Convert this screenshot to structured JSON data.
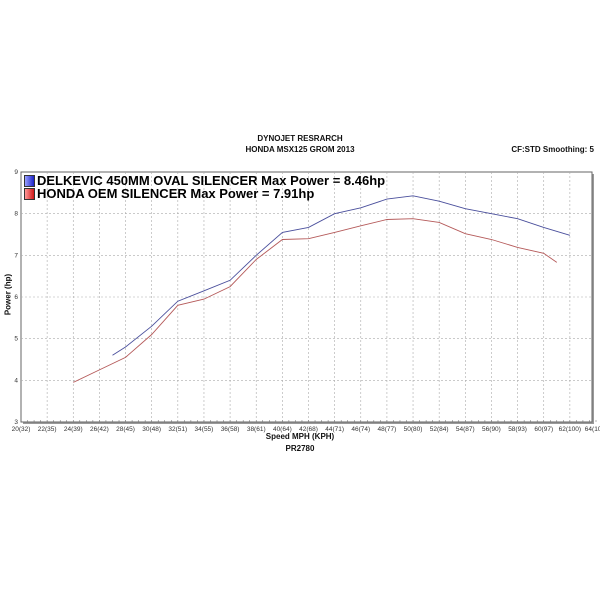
{
  "header": {
    "title": "DYNOJET RESRARCH",
    "subtitle": "HONDA MSX125 GROM 2013",
    "settings": "CF:STD Smoothing: 5"
  },
  "footer": {
    "run_id": "PR2780"
  },
  "chart_data": {
    "type": "line",
    "title": "DYNOJET RESRARCH",
    "subtitle": "HONDA MSX125 GROM 2013",
    "xlabel": "Speed MPH (KPH)",
    "ylabel": "Power (hp)",
    "xlim": [
      20,
      64
    ],
    "ylim": [
      3,
      9
    ],
    "grid": true,
    "legend": "top-left",
    "x_ticks": [
      "20(32)",
      "22(35)",
      "24(39)",
      "26(42)",
      "28(45)",
      "30(48)",
      "32(51)",
      "34(55)",
      "36(58)",
      "38(61)",
      "40(64)",
      "42(68)",
      "44(71)",
      "46(74)",
      "48(77)",
      "50(80)",
      "52(84)",
      "54(87)",
      "56(90)",
      "58(93)",
      "60(97)",
      "62(100)",
      "64(103)"
    ],
    "y_ticks": [
      "3",
      "4",
      "5",
      "6",
      "7",
      "8",
      "9"
    ],
    "series": [
      {
        "name": "DELKEVIC 450MM OVAL SILENCER Max Power = 8.46hp",
        "color": "#4a4f9c",
        "x": [
          27,
          28,
          30,
          32,
          34,
          36,
          38,
          40,
          42,
          44,
          46,
          48,
          50,
          52,
          54,
          56,
          58,
          60,
          62
        ],
        "y": [
          4.6,
          4.8,
          5.3,
          5.9,
          6.15,
          6.4,
          7.0,
          7.55,
          7.67,
          8.0,
          8.14,
          8.35,
          8.43,
          8.3,
          8.12,
          8.0,
          7.88,
          7.67,
          7.48
        ]
      },
      {
        "name": "HONDA OEM SILENCER Max Power = 7.91hp",
        "color": "#b55a5a",
        "x": [
          24,
          26,
          28,
          30,
          32,
          34,
          36,
          38,
          40,
          42,
          44,
          46,
          48,
          50,
          52,
          54,
          56,
          58,
          60,
          61
        ],
        "y": [
          3.95,
          4.25,
          4.55,
          5.1,
          5.8,
          5.95,
          6.25,
          6.9,
          7.38,
          7.4,
          7.55,
          7.71,
          7.86,
          7.88,
          7.79,
          7.52,
          7.38,
          7.19,
          7.05,
          6.83
        ]
      }
    ]
  }
}
